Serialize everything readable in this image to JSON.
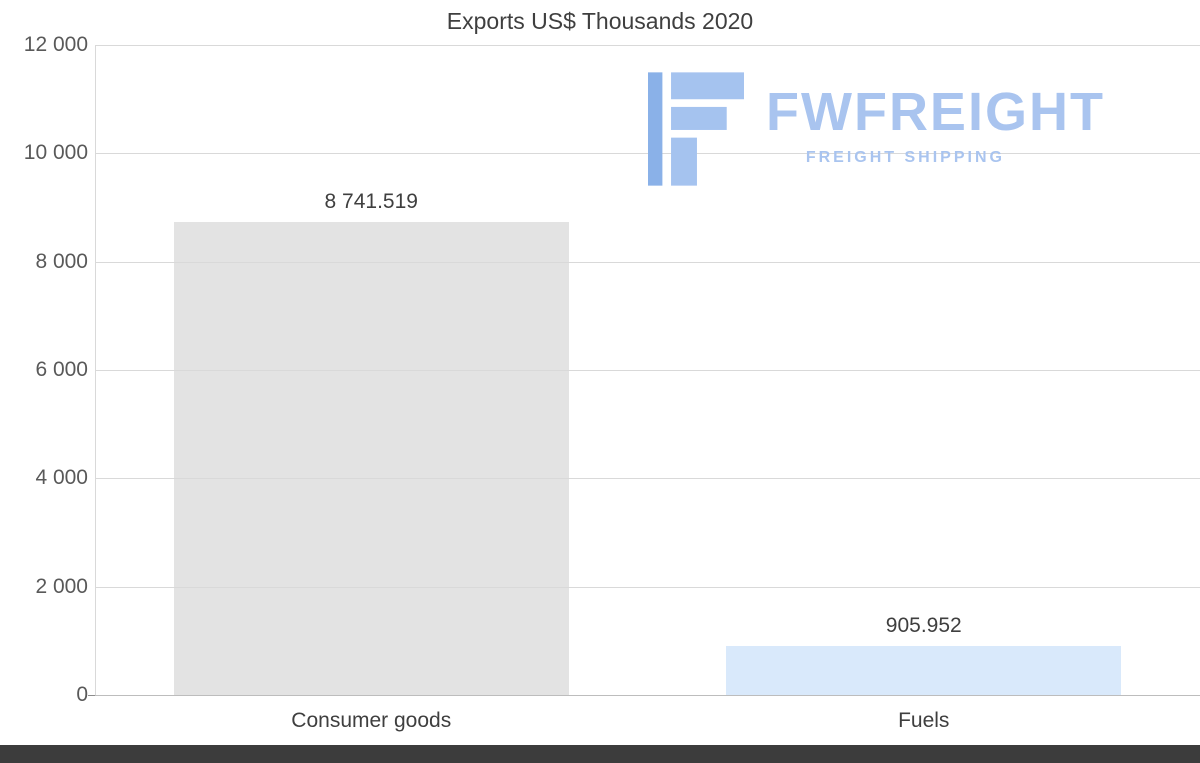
{
  "chart_data": {
    "type": "bar",
    "title": "Exports US$ Thousands 2020",
    "categories": [
      "Consumer goods",
      "Fuels"
    ],
    "values": [
      8741.519,
      905.952
    ],
    "value_labels": [
      "8 741.519",
      "905.952"
    ],
    "bar_colors": [
      "#e3e3e3",
      "#d9e9fb"
    ],
    "ylim": [
      0,
      12000
    ],
    "y_ticks": [
      {
        "value": 12000,
        "label": "12 000"
      },
      {
        "value": 10000,
        "label": "10 000"
      },
      {
        "value": 8000,
        "label": "8 000"
      },
      {
        "value": 6000,
        "label": "6 000"
      },
      {
        "value": 4000,
        "label": "4 000"
      },
      {
        "value": 2000,
        "label": "2 000"
      },
      {
        "value": 0,
        "label": "0"
      }
    ],
    "grid": true,
    "legend": false
  },
  "logo": {
    "name": "FWFREIGHT",
    "tagline": "FREIGHT SHIPPING",
    "accent_color": "#a9c4ef",
    "icon_color": "#a5c3ef",
    "icon_stripe_color": "#8ab1e8"
  },
  "colors": {
    "background": "#ffffff",
    "gridline": "#d9d9d9",
    "axis_text": "#595959",
    "title_text": "#3f3f3f",
    "footer_bar": "#3c3c3c"
  }
}
